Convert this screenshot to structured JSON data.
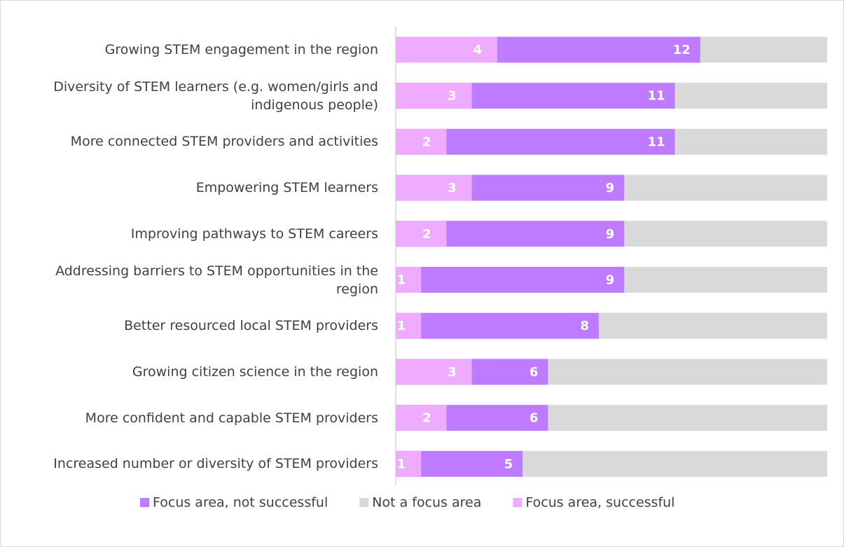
{
  "chart_data": {
    "type": "bar",
    "categories": [
      "Growing STEM engagement in the region",
      "Diversity of STEM learners (e.g. women/girls and indigenous people)",
      "More connected STEM providers and activities",
      "Empowering STEM learners",
      "Improving pathways to STEM careers",
      "Addressing barriers to STEM opportunities in the region",
      "Better resourced local STEM providers",
      "Growing citizen science in the region",
      "More confident and capable STEM providers",
      "Increased number or diversity of STEM providers"
    ],
    "series": [
      {
        "name": "Focus area, not successful",
        "color": "#bf7bff",
        "values": [
          12,
          11,
          11,
          9,
          9,
          9,
          8,
          6,
          6,
          5
        ]
      },
      {
        "name": "Not a focus area",
        "color": "#d9d9d9",
        "values": [
          5,
          6,
          6,
          8,
          8,
          8,
          9,
          11,
          11,
          12
        ]
      },
      {
        "name": "Focus area, successful",
        "color": "#efabff",
        "values": [
          4,
          3,
          2,
          3,
          2,
          1,
          1,
          3,
          2,
          1
        ]
      }
    ],
    "xlim": [
      0,
      17
    ]
  }
}
